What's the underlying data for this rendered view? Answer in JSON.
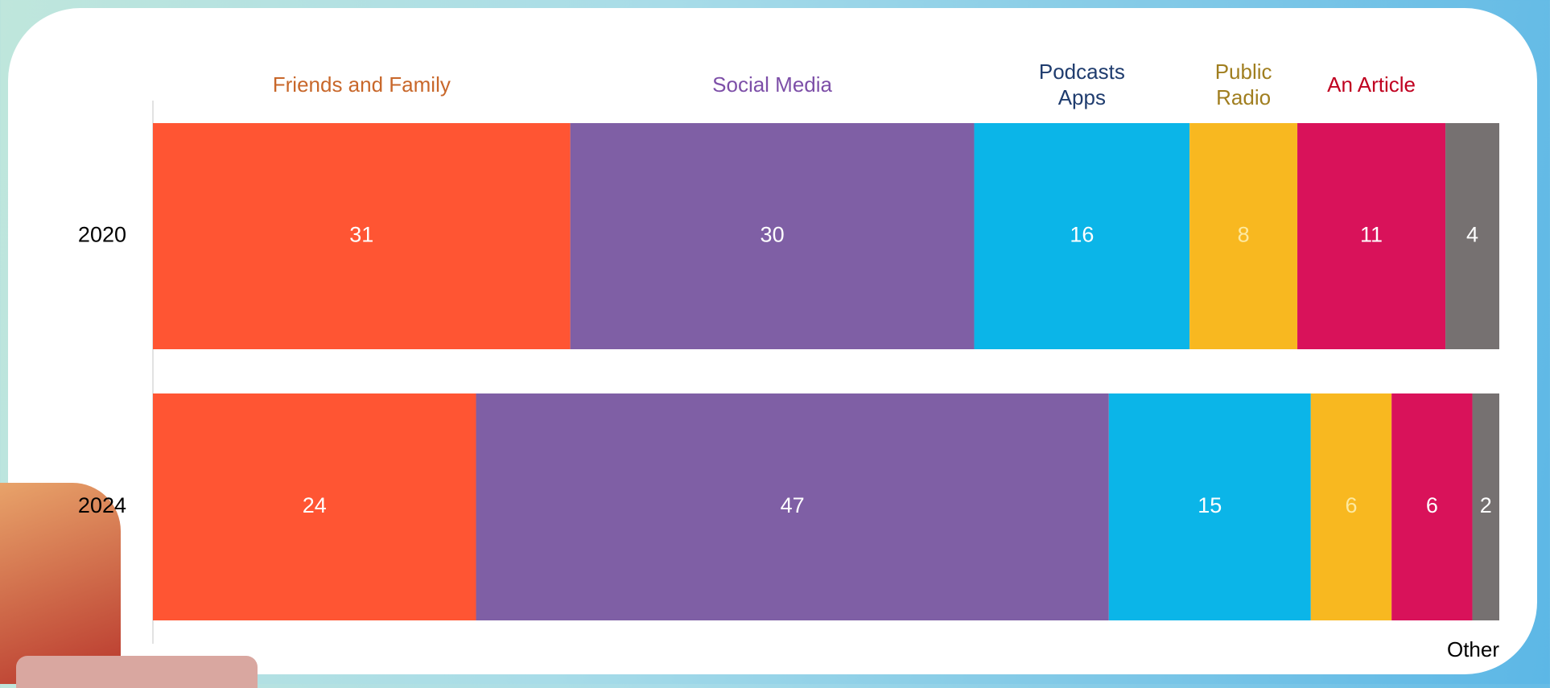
{
  "chart_data": {
    "type": "stacked-bar-horizontal",
    "categories": [
      "2020",
      "2024"
    ],
    "xlim": [
      0,
      100
    ],
    "series": [
      {
        "name": "Friends and Family",
        "color": "#FF5533",
        "label_color": "#C8672A",
        "values": [
          31,
          24
        ]
      },
      {
        "name": "Social Media",
        "color": "#7F5FA5",
        "label_color": "#7D4FA8",
        "values": [
          30,
          47
        ]
      },
      {
        "name": "Podcasts Apps",
        "color": "#0BB5E8",
        "label_color": "#1F3C6E",
        "values": [
          16,
          15
        ]
      },
      {
        "name": "Public Radio",
        "color": "#F8B820",
        "label_color": "#A07E1F",
        "value_label_color": "#FDE9A0",
        "values": [
          8,
          6
        ]
      },
      {
        "name": "An Article",
        "color": "#D9125A",
        "label_color": "#C00020",
        "values": [
          11,
          6
        ]
      },
      {
        "name": "Other",
        "color": "#767171",
        "label_color": "#000000",
        "values": [
          4,
          2
        ]
      }
    ]
  }
}
